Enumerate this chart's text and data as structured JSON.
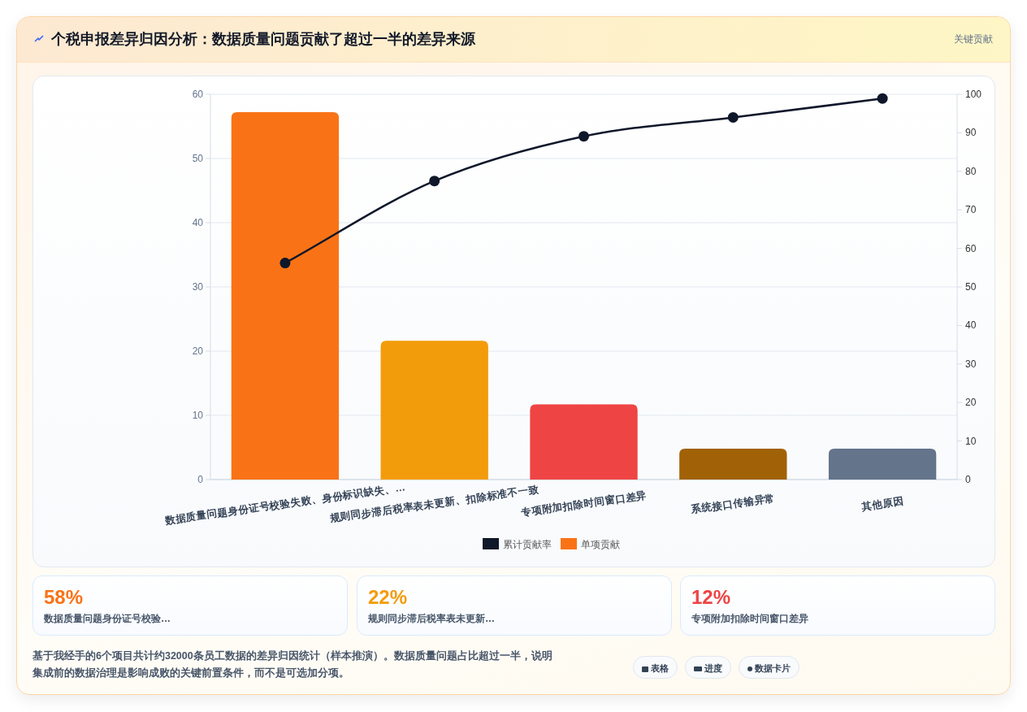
{
  "chart_data": {
    "type": "bar",
    "title": "个税申报差异归因分析：数据质量问题贡献了超过一半的差异来源",
    "categories": [
      "数据质量问题身份证号校验失败、身份标识缺失、…",
      "规则同步滞后税率表未更新、扣除标准不一致",
      "专项附加扣除时间窗口差异",
      "系统接口传输异常",
      "其他原因"
    ],
    "series": [
      {
        "name": "累计贡献率",
        "type": "line",
        "axis": "y2",
        "color": "#0f172a",
        "values": [
          56.2,
          77.5,
          89.1,
          94.0,
          98.9
        ]
      },
      {
        "name": "单项贡献",
        "color": "#f97316",
        "colors": [
          "#f97316",
          "#f39c0b",
          "#ef4444",
          "#a16207",
          "#64748b"
        ],
        "values": [
          57.2,
          21.6,
          11.7,
          4.8,
          4.8
        ]
      }
    ],
    "ylim": [
      0,
      60
    ],
    "yticks": [
      0,
      10,
      20,
      30,
      40,
      50,
      60
    ],
    "y2lim": [
      0,
      100
    ],
    "y2ticks": [
      0,
      10,
      20,
      30,
      40,
      50,
      60,
      70,
      80,
      90,
      100
    ],
    "grid": "y",
    "legend": "bottom",
    "marker": "circle",
    "annotations": [
      "关键贡献",
      "58%",
      "数据质量问题身份证号校验…",
      "22%",
      "规则同步滞后税率表未更新…",
      "12%",
      "专项附加扣除时间窗口差异",
      "基于我经手的6个项目共计约32000条员工数据的差异归因统计（样本推演）。数据质量问题占比超过一半，说明集成前的数据治理是影响成败的关键前置条件，而不是可选加分项。",
      "表格",
      "进度",
      "数据卡片"
    ]
  }
}
